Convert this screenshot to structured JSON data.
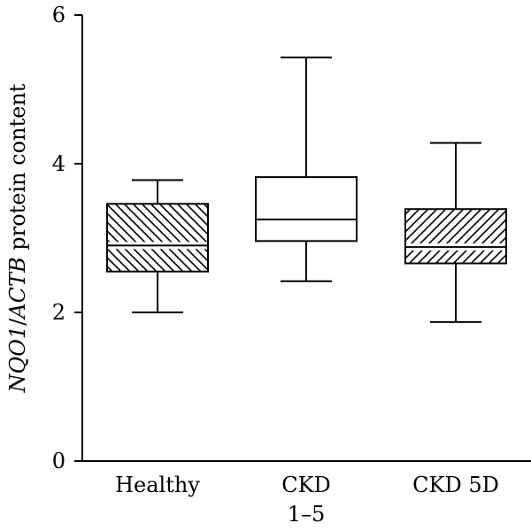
{
  "chart_data": {
    "type": "box",
    "ylabel": {
      "gene1": "NQO1",
      "sep": "/",
      "gene2": "ACTB",
      "rest": " protein content"
    },
    "ylim": [
      0,
      6
    ],
    "yticks": [
      0,
      2,
      4,
      6
    ],
    "grid": false,
    "categories": [
      {
        "line1": "Healthy",
        "line2": ""
      },
      {
        "line1": "CKD",
        "line2": "1–5"
      },
      {
        "line1": "CKD 5D",
        "line2": ""
      }
    ],
    "boxes": [
      {
        "whisker_low": 2.0,
        "q1": 2.55,
        "median": 2.9,
        "q3": 3.46,
        "whisker_high": 3.78,
        "fill": "hatch-back"
      },
      {
        "whisker_low": 2.42,
        "q1": 2.96,
        "median": 3.25,
        "q3": 3.82,
        "whisker_high": 5.43,
        "fill": "none"
      },
      {
        "whisker_low": 1.87,
        "q1": 2.66,
        "median": 2.88,
        "q3": 3.39,
        "whisker_high": 4.28,
        "fill": "hatch-forward"
      }
    ]
  }
}
